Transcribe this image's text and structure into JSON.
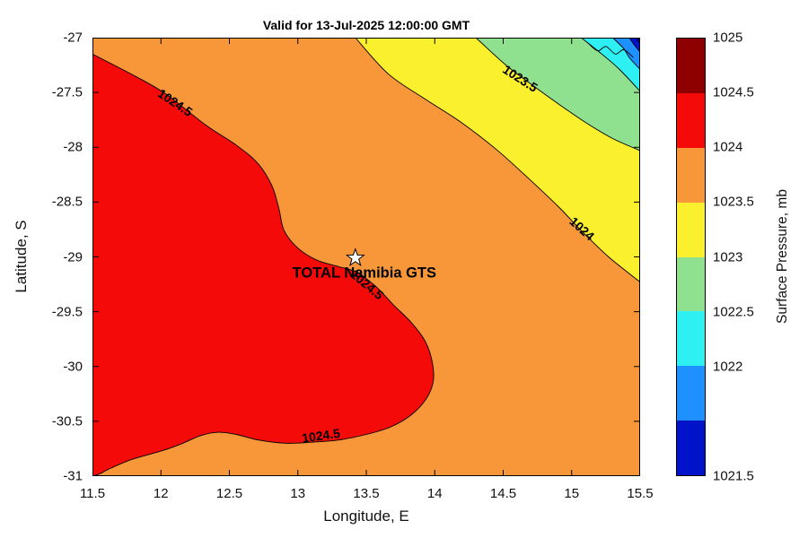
{
  "chart_data": {
    "type": "heatmap",
    "subtype": "filled_contour_map",
    "title": "Valid for 13-Jul-2025 12:00:00 GMT",
    "xlabel": "Longitude, E",
    "ylabel": "Latitude, S",
    "xlim": [
      11.5,
      15.5
    ],
    "ylim": [
      -31,
      -27
    ],
    "x_ticks": [
      "11.5",
      "12",
      "12.5",
      "13",
      "13.5",
      "14",
      "14.5",
      "15",
      "15.5"
    ],
    "y_ticks": [
      "-27",
      "-27.5",
      "-28",
      "-28.5",
      "-29",
      "-29.5",
      "-30",
      "-30.5",
      "-31"
    ],
    "grid": false,
    "colorbar": {
      "label": "Surface Pressure, mb",
      "ticks": [
        {
          "label": "1025",
          "f": 0.0
        },
        {
          "label": "1024.5",
          "f": 0.125
        },
        {
          "label": "1024",
          "f": 0.25
        },
        {
          "label": "1023.5",
          "f": 0.375
        },
        {
          "label": "1023",
          "f": 0.5
        },
        {
          "label": "1022.5",
          "f": 0.625
        },
        {
          "label": "1022",
          "f": 0.75
        },
        {
          "label": "1021.5",
          "f": 1.0
        }
      ],
      "segment_colors": [
        "#8E0000",
        "#F50A0A",
        "#F79739",
        "#FBF02D",
        "#8FE18F",
        "#2EEFF2",
        "#1E90FF",
        "#0013C9"
      ]
    },
    "levels_mb": [
      1021.5,
      1022,
      1022.5,
      1023,
      1023.5,
      1024,
      1024.5,
      1025
    ],
    "legend_intervals": [
      {
        "range_mb": "1024.5-1025",
        "color_name": "red"
      },
      {
        "range_mb": "1024-1024.5",
        "color_name": "orange"
      },
      {
        "range_mb": "1023.5-1024",
        "color_name": "yellow"
      },
      {
        "range_mb": "1023-1023.5",
        "color_name": "green"
      },
      {
        "range_mb": "1022.5-1023",
        "color_name": "cyan"
      },
      {
        "range_mb": "1022-1022.5",
        "color_name": "dodger-blue"
      },
      {
        "range_mb": "1021.5-1022",
        "color_name": "blue"
      }
    ],
    "palette": {
      "orange": "#F79739",
      "red": "#F50A0A",
      "yellow": "#FBF02D",
      "green": "#8FE18F",
      "cyan": "#2EEFF2",
      "dodger": "#1E90FF",
      "blue": "#0013C9",
      "navy": "#000090"
    },
    "contours": [
      {
        "id": "1024p5",
        "level": 1024.5,
        "fill": "red",
        "closure": [],
        "points": [
          [
            11.5,
            -27.15
          ],
          [
            11.81,
            -27.35
          ],
          [
            12.03,
            -27.51
          ],
          [
            12.33,
            -27.8
          ],
          [
            12.55,
            -27.98
          ],
          [
            12.71,
            -28.15
          ],
          [
            12.81,
            -28.35
          ],
          [
            12.86,
            -28.55
          ],
          [
            12.9,
            -28.76
          ],
          [
            13.0,
            -28.92
          ],
          [
            13.14,
            -29.03
          ],
          [
            13.3,
            -29.09
          ],
          [
            13.43,
            -29.14
          ],
          [
            13.57,
            -29.27
          ],
          [
            13.7,
            -29.44
          ],
          [
            13.83,
            -29.6
          ],
          [
            13.93,
            -29.77
          ],
          [
            13.98,
            -29.95
          ],
          [
            13.99,
            -30.13
          ],
          [
            13.94,
            -30.29
          ],
          [
            13.83,
            -30.44
          ],
          [
            13.68,
            -30.55
          ],
          [
            13.5,
            -30.62
          ],
          [
            13.3,
            -30.67
          ],
          [
            13.11,
            -30.69
          ],
          [
            12.91,
            -30.7
          ],
          [
            12.71,
            -30.67
          ],
          [
            12.55,
            -30.62
          ],
          [
            12.42,
            -30.6
          ],
          [
            12.29,
            -30.63
          ],
          [
            12.16,
            -30.7
          ],
          [
            12.03,
            -30.76
          ],
          [
            11.89,
            -30.81
          ],
          [
            11.76,
            -30.86
          ],
          [
            11.63,
            -30.93
          ],
          [
            11.55,
            -30.98
          ],
          [
            11.5,
            -31.0
          ]
        ]
      },
      {
        "id": "1024",
        "level": 1024,
        "fill": "yellow",
        "closure": [
          [
            15.5,
            -27.0
          ]
        ],
        "points": [
          [
            13.42,
            -27.0
          ],
          [
            13.66,
            -27.33
          ],
          [
            13.93,
            -27.56
          ],
          [
            14.19,
            -27.77
          ],
          [
            14.45,
            -28.02
          ],
          [
            14.69,
            -28.29
          ],
          [
            14.91,
            -28.55
          ],
          [
            15.07,
            -28.76
          ],
          [
            15.27,
            -29.0
          ],
          [
            15.5,
            -29.23
          ]
        ]
      },
      {
        "id": "1023p5",
        "level": 1023.5,
        "fill": "green",
        "closure": [
          [
            15.5,
            -27.0
          ]
        ],
        "points": [
          [
            14.3,
            -27.0
          ],
          [
            14.52,
            -27.25
          ],
          [
            14.71,
            -27.43
          ],
          [
            14.91,
            -27.61
          ],
          [
            15.11,
            -27.78
          ],
          [
            15.3,
            -27.92
          ],
          [
            15.5,
            -28.03
          ]
        ]
      },
      {
        "id": "1023",
        "level": 1023,
        "fill": "cyan",
        "closure": [
          [
            15.5,
            -27.0
          ]
        ],
        "points": [
          [
            15.07,
            -27.0
          ],
          [
            15.22,
            -27.15
          ],
          [
            15.35,
            -27.29
          ],
          [
            15.5,
            -27.49
          ]
        ]
      },
      {
        "id": "1022p5",
        "level": 1022.5,
        "fill": "dodger",
        "closure": [
          [
            15.5,
            -27.0
          ]
        ],
        "points": [
          [
            15.3,
            -27.0
          ],
          [
            15.38,
            -27.1
          ],
          [
            15.42,
            -27.18
          ],
          [
            15.5,
            -27.29
          ]
        ]
      },
      {
        "id": "1022",
        "level": 1022,
        "fill": "blue",
        "closure": [
          [
            15.5,
            -27.0
          ]
        ],
        "points": [
          [
            15.42,
            -27.0
          ],
          [
            15.46,
            -27.07
          ],
          [
            15.5,
            -27.13
          ]
        ]
      },
      {
        "id": "1021p5",
        "level": 1021.5,
        "fill": "navy",
        "closure": [
          [
            15.5,
            -27.0
          ]
        ],
        "points": [
          [
            15.47,
            -27.0
          ],
          [
            15.5,
            -27.06
          ]
        ]
      },
      {
        "id": "corner-squiggle",
        "level": null,
        "fill": null,
        "closure": [],
        "points": [
          [
            15.12,
            -27.05
          ],
          [
            15.19,
            -27.12
          ],
          [
            15.25,
            -27.08
          ],
          [
            15.32,
            -27.15
          ],
          [
            15.38,
            -27.11
          ],
          [
            15.45,
            -27.18
          ]
        ]
      }
    ],
    "contour_labels": [
      {
        "text": "1024.5",
        "lon": 12.1,
        "lat": -27.6,
        "angle": 34
      },
      {
        "text": "1024.5",
        "lon": 13.5,
        "lat": -29.26,
        "angle": 40
      },
      {
        "text": "1024.5",
        "lon": 13.17,
        "lat": -30.64,
        "angle": -8
      },
      {
        "text": "1024",
        "lon": 15.07,
        "lat": -28.75,
        "angle": 42
      },
      {
        "text": "1023.5",
        "lon": 14.62,
        "lat": -27.38,
        "angle": 33
      }
    ],
    "station": {
      "label": "TOTAL Namibia GTS",
      "lon": 13.42,
      "lat": -29.01,
      "marker": "star"
    }
  }
}
